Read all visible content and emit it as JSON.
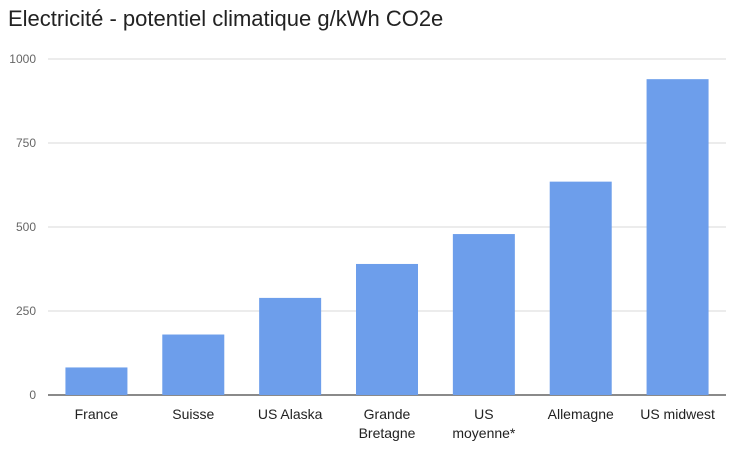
{
  "chart_data": {
    "type": "bar",
    "title": "Electricité - potentiel climatique g/kWh CO2e",
    "categories": [
      [
        "France"
      ],
      [
        "Suisse"
      ],
      [
        "US Alaska"
      ],
      [
        "Grande",
        "Bretagne"
      ],
      [
        "US",
        "moyenne*"
      ],
      [
        "Allemagne"
      ],
      [
        "US midwest"
      ]
    ],
    "values": [
      82,
      180,
      289,
      390,
      479,
      635,
      940
    ],
    "ylim": [
      0,
      1000
    ],
    "yticks": [
      0,
      250,
      500,
      750,
      1000
    ],
    "grid": true,
    "legend": "none",
    "colors": {
      "bar": "#6d9eeb",
      "grid": "#d9d9d9",
      "axis": "#444444",
      "text": "#222222",
      "tick_text": "#666666"
    }
  }
}
